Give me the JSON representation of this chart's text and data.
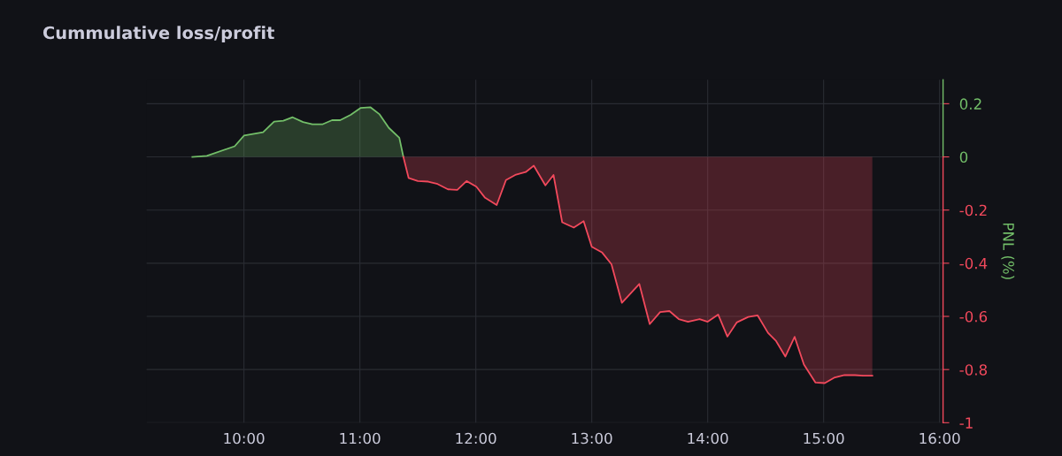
{
  "chart_data": {
    "type": "area",
    "title": "Cummulative loss/profit",
    "y2label": "PNL (%)",
    "xlim": [
      9.16,
      16.03
    ],
    "y2lim": [
      -1,
      0.29
    ],
    "legend": false,
    "xticks": [
      {
        "value": 10,
        "label": "10:00"
      },
      {
        "value": 11,
        "label": "11:00"
      },
      {
        "value": 12,
        "label": "12:00"
      },
      {
        "value": 13,
        "label": "13:00"
      },
      {
        "value": 14,
        "label": "14:00"
      },
      {
        "value": 15,
        "label": "15:00"
      },
      {
        "value": 16,
        "label": "16:00"
      }
    ],
    "y2ticks": [
      0.2,
      0,
      -0.2,
      -0.4,
      -0.6,
      -0.8,
      -1
    ],
    "grid": true,
    "series": [
      {
        "color": "#73bf69",
        "axis": "y2",
        "x": [
          9.555,
          9.68,
          9.92,
          10.0,
          10.165,
          10.26,
          10.34,
          10.42,
          10.51,
          10.59,
          10.68,
          10.76,
          10.83,
          10.92,
          11.005,
          11.09,
          11.17,
          11.25,
          11.34,
          11.375
        ],
        "values": [
          0.0,
          0.004,
          0.04,
          0.08,
          0.093,
          0.133,
          0.136,
          0.149,
          0.131,
          0.123,
          0.123,
          0.138,
          0.138,
          0.158,
          0.184,
          0.187,
          0.16,
          0.109,
          0.072,
          0
        ]
      },
      {
        "color": "#f2495c",
        "axis": "y2",
        "x": [
          11.375,
          11.42,
          11.5,
          11.59,
          11.67,
          11.76,
          11.84,
          11.92,
          12.005,
          12.08,
          12.18,
          12.26,
          12.34,
          12.43,
          12.5,
          12.6,
          12.67,
          12.745,
          12.845,
          12.93,
          13.0,
          13.09,
          13.17,
          13.26,
          13.41,
          13.5,
          13.59,
          13.67,
          13.75,
          13.83,
          13.93,
          14.0,
          14.09,
          14.17,
          14.25,
          14.35,
          14.43,
          14.52,
          14.59,
          14.67,
          14.75,
          14.83,
          14.93,
          15.01,
          15.09,
          15.18,
          15.27,
          15.34,
          15.42
        ],
        "values": [
          0,
          -0.079,
          -0.091,
          -0.093,
          -0.102,
          -0.122,
          -0.124,
          -0.091,
          -0.112,
          -0.154,
          -0.181,
          -0.087,
          -0.068,
          -0.057,
          -0.033,
          -0.107,
          -0.068,
          -0.246,
          -0.266,
          -0.242,
          -0.338,
          -0.36,
          -0.404,
          -0.549,
          -0.478,
          -0.629,
          -0.584,
          -0.58,
          -0.61,
          -0.62,
          -0.61,
          -0.62,
          -0.593,
          -0.676,
          -0.623,
          -0.602,
          -0.596,
          -0.662,
          -0.693,
          -0.751,
          -0.677,
          -0.781,
          -0.849,
          -0.851,
          -0.831,
          -0.821,
          -0.821,
          -0.823,
          -0.823
        ]
      }
    ]
  }
}
